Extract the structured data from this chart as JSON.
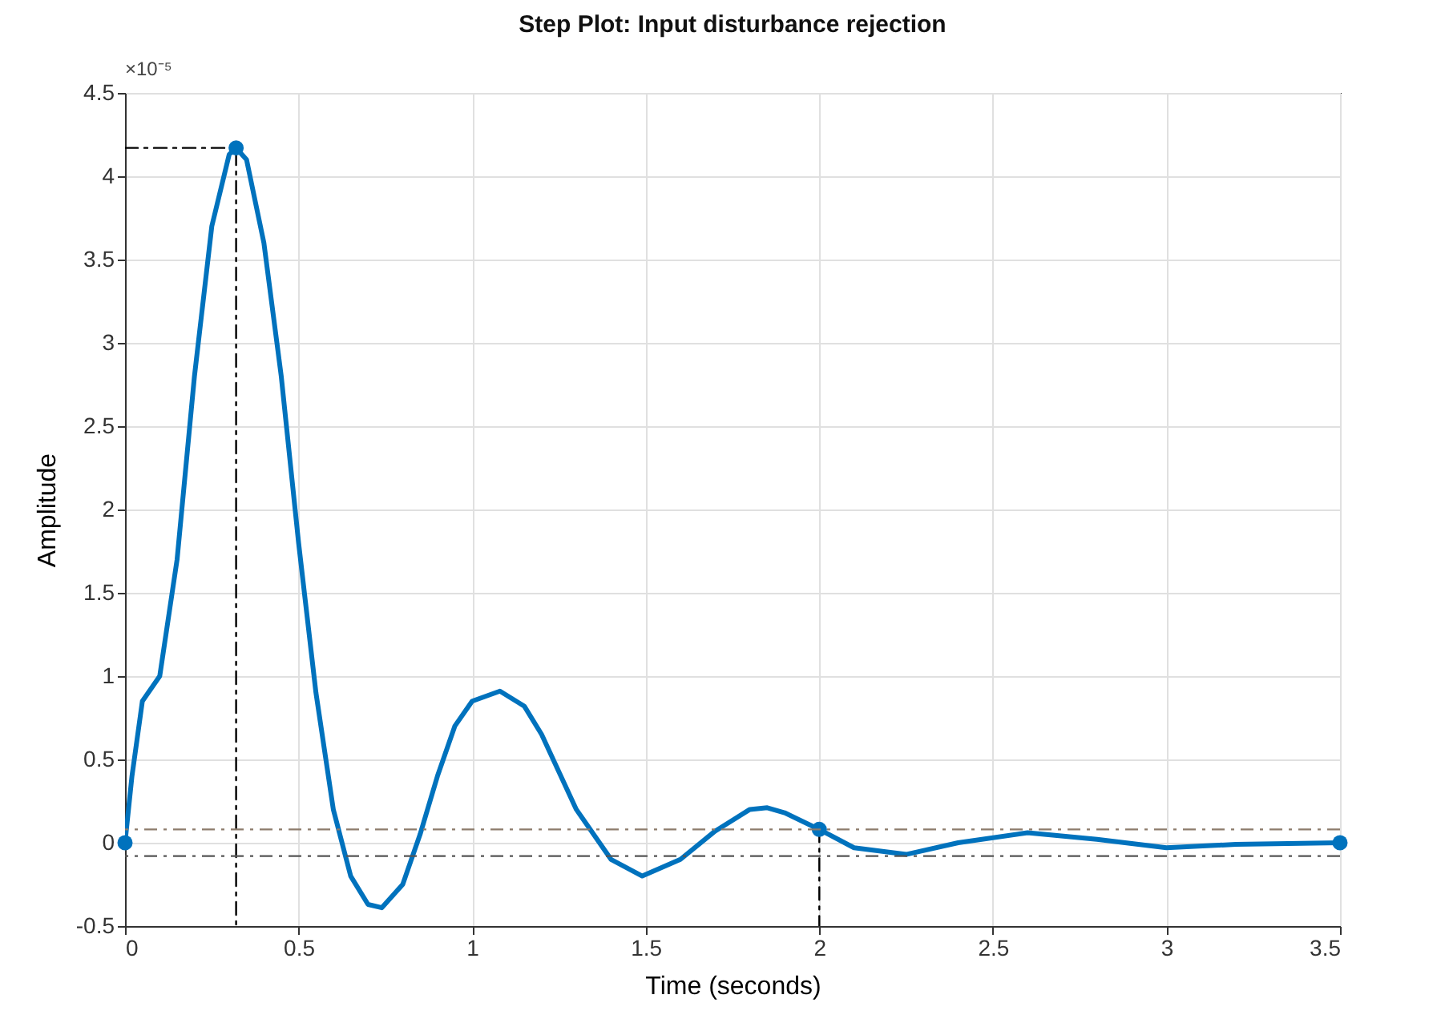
{
  "chart_data": {
    "type": "line",
    "title": "Step Plot: Input disturbance rejection",
    "xlabel": "Time (seconds)",
    "ylabel": "Amplitude",
    "annotations": [
      "×10⁻⁵"
    ],
    "xlim": [
      0,
      3.5
    ],
    "xticks": [
      0,
      0.5,
      1,
      1.5,
      2,
      2.5,
      3,
      3.5
    ],
    "ylim": [
      -0.5,
      4.5
    ],
    "yticks": [
      -0.5,
      0,
      0.5,
      1,
      1.5,
      2,
      2.5,
      3,
      3.5,
      4,
      4.5
    ],
    "grid": true,
    "series": [
      {
        "type": "line",
        "color": "#0072bd",
        "line_style": "solid",
        "x": [
          0,
          0.02,
          0.05,
          0.1,
          0.15,
          0.2,
          0.25,
          0.3,
          0.32,
          0.35,
          0.4,
          0.45,
          0.5,
          0.55,
          0.6,
          0.65,
          0.7,
          0.74,
          0.8,
          0.85,
          0.9,
          0.95,
          1.0,
          1.08,
          1.15,
          1.2,
          1.3,
          1.4,
          1.49,
          1.6,
          1.7,
          1.8,
          1.85,
          1.9,
          2.0,
          2.1,
          2.25,
          2.4,
          2.6,
          2.8,
          3.0,
          3.2,
          3.5
        ],
        "values": [
          0,
          0.4,
          0.85,
          1.0,
          1.7,
          2.8,
          3.7,
          4.13,
          4.17,
          4.1,
          3.6,
          2.8,
          1.8,
          0.9,
          0.2,
          -0.2,
          -0.37,
          -0.39,
          -0.25,
          0.05,
          0.4,
          0.7,
          0.85,
          0.91,
          0.82,
          0.65,
          0.2,
          -0.1,
          -0.2,
          -0.1,
          0.07,
          0.2,
          0.21,
          0.18,
          0.08,
          -0.03,
          -0.07,
          0.0,
          0.06,
          0.02,
          -0.03,
          -0.01,
          0.0
        ]
      },
      {
        "type": "line",
        "color": "#000000",
        "line_style": "dashed",
        "x": [
          0,
          0.32,
          0.32
        ],
        "values": [
          4.17,
          4.17,
          -0.5
        ]
      },
      {
        "type": "line",
        "color": "#000000",
        "line_style": "dashed",
        "x": [
          2,
          2
        ],
        "values": [
          0.08,
          -0.5
        ]
      },
      {
        "type": "scatter",
        "color": "#0072bd",
        "marker": "circle",
        "x": [
          0,
          0.32,
          2,
          3.5
        ],
        "values": [
          0,
          4.17,
          0.08,
          0
        ]
      }
    ],
    "ref_lines": [
      {
        "axis": "y",
        "value": 0.08,
        "color": "#8c7b6b",
        "line_style": "dashed"
      },
      {
        "axis": "y",
        "value": -0.08,
        "color": "#555555",
        "line_style": "dashed"
      }
    ]
  }
}
